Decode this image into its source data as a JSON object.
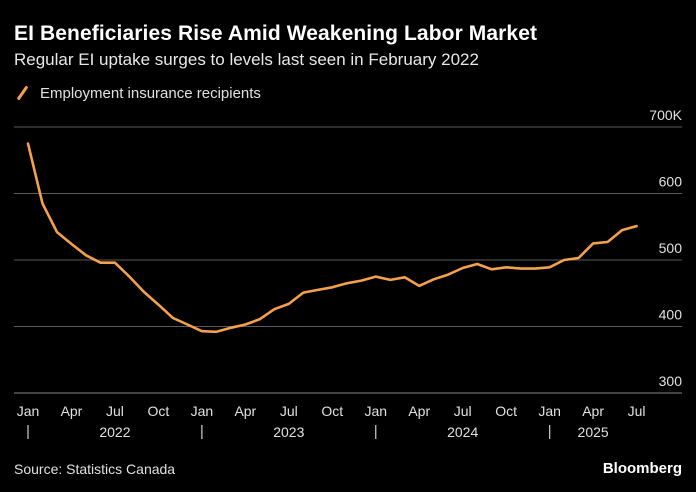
{
  "title": "EI Beneficiaries Rise Amid Weakening Labor Market",
  "subtitle": "Regular EI uptake surges to levels last seen in February 2022",
  "source": "Source: Statistics Canada",
  "brand": "Bloomberg",
  "colors": {
    "line": "#f5a04a",
    "grid": "#5a5a5a",
    "background": "#000000"
  },
  "chart_data": {
    "type": "line",
    "title": "EI Beneficiaries Rise Amid Weakening Labor Market",
    "subtitle": "Regular EI uptake surges to levels last seen in February 2022",
    "ylim": [
      300,
      700
    ],
    "y_ticks": [
      300,
      400,
      500,
      600,
      700
    ],
    "y_tick_labels": [
      "300",
      "400",
      "500",
      "600",
      "700K"
    ],
    "grid": true,
    "legend_position": "top-left",
    "x_tick_labels": [
      "Jan",
      "Apr",
      "Jul",
      "Oct",
      "Jan",
      "Apr",
      "Jul",
      "Oct",
      "Jan",
      "Apr",
      "Jul",
      "Oct",
      "Jan",
      "Apr",
      "Jul"
    ],
    "year_labels": [
      "2022",
      "2023",
      "2024",
      "2025"
    ],
    "x": [
      "2022-01",
      "2022-02",
      "2022-03",
      "2022-04",
      "2022-05",
      "2022-06",
      "2022-07",
      "2022-08",
      "2022-09",
      "2022-10",
      "2022-11",
      "2022-12",
      "2023-01",
      "2023-02",
      "2023-03",
      "2023-04",
      "2023-05",
      "2023-06",
      "2023-07",
      "2023-08",
      "2023-09",
      "2023-10",
      "2023-11",
      "2023-12",
      "2024-01",
      "2024-02",
      "2024-03",
      "2024-04",
      "2024-05",
      "2024-06",
      "2024-07",
      "2024-08",
      "2024-09",
      "2024-10",
      "2024-11",
      "2024-12",
      "2025-01",
      "2025-02",
      "2025-03",
      "2025-04",
      "2025-05",
      "2025-06",
      "2025-07"
    ],
    "series": [
      {
        "name": "Employment insurance recipients",
        "values": [
          675,
          585,
          542,
          524,
          507,
          496,
          496,
          475,
          452,
          433,
          413,
          403,
          393,
          392,
          398,
          403,
          411,
          426,
          434,
          451,
          455,
          459,
          465,
          469,
          475,
          470,
          474,
          461,
          471,
          478,
          488,
          494,
          486,
          489,
          487,
          487,
          489,
          500,
          503,
          525,
          527,
          545,
          551
        ]
      }
    ]
  }
}
